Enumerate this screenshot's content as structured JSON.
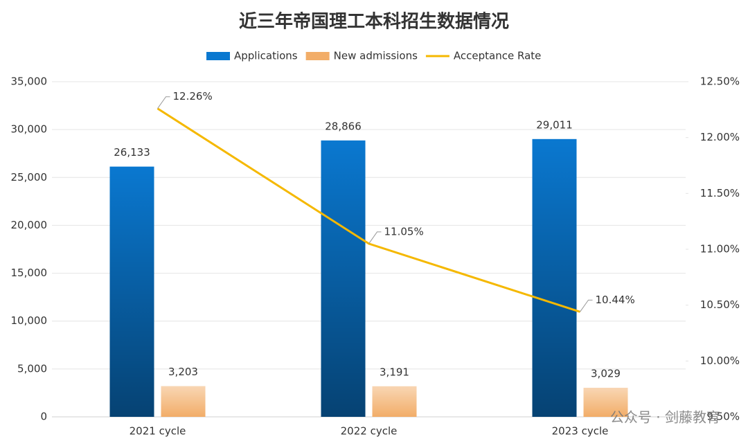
{
  "chart_data": {
    "type": "bar_line",
    "title": "近三年帝国理工本科招生数据情况",
    "categories": [
      "2021 cycle",
      "2022 cycle",
      "2023 cycle"
    ],
    "series": [
      {
        "name": "Applications",
        "type": "bar",
        "color": "#0a78d0",
        "values": [
          26133,
          28866,
          29011
        ],
        "value_labels": [
          "26,133",
          "28,866",
          "29,011"
        ]
      },
      {
        "name": "New admissions",
        "type": "bar",
        "color": "#f2ad68",
        "values": [
          3203,
          3191,
          3029
        ],
        "value_labels": [
          "3,203",
          "3,191",
          "3,029"
        ]
      },
      {
        "name": "Acceptance Rate",
        "type": "line",
        "axis": "y2",
        "color": "#f5b800",
        "values": [
          12.26,
          11.05,
          10.44
        ],
        "value_labels": [
          "12.26%",
          "11.05%",
          "10.44%"
        ]
      }
    ],
    "ylim": [
      0,
      35000
    ],
    "yticks": [
      0,
      {
        "value": 5000,
        "label": "5,000"
      },
      {
        "value": 10000,
        "label": "10,000"
      },
      {
        "value": 15000,
        "label": "15,000"
      },
      {
        "value": 20000,
        "label": "20,000"
      },
      {
        "value": 25000,
        "label": "25,000"
      },
      {
        "value": 30000,
        "label": "30,000"
      },
      {
        "value": 35000,
        "label": "35,000"
      }
    ],
    "y2lim": [
      9.5,
      12.5
    ],
    "y2ticks": [
      {
        "value": 9.5,
        "label": "9.50%"
      },
      {
        "value": 10,
        "label": "10.00%"
      },
      {
        "value": 10.5,
        "label": "10.50%"
      },
      {
        "value": 11,
        "label": "11.00%"
      },
      {
        "value": 11.5,
        "label": "11.50%"
      },
      {
        "value": 12,
        "label": "12.00%"
      },
      {
        "value": 12.5,
        "label": "12.50%"
      }
    ],
    "grid": true,
    "legend": "top",
    "watermark": "公众号 · 剑藤教育"
  }
}
